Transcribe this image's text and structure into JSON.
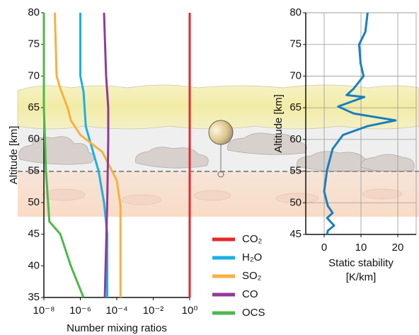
{
  "chart_data": [
    {
      "type": "line",
      "xscale": "log",
      "ylabel": "Altitude [km]",
      "xlabel": "Number mixing ratios",
      "xlim": [
        1e-08,
        1
      ],
      "ylim": [
        35,
        80
      ],
      "xticks": [
        {
          "value": 1e-08,
          "label": "10⁻⁸"
        },
        {
          "value": 1e-06,
          "label": "10⁻⁶"
        },
        {
          "value": 0.0001,
          "label": "10⁻⁴"
        },
        {
          "value": 0.01,
          "label": "10⁻²"
        },
        {
          "value": 1,
          "label": "10⁰"
        }
      ],
      "yticks": [
        35,
        40,
        45,
        50,
        55,
        60,
        65,
        70,
        75,
        80
      ],
      "legend": "right",
      "series": [
        {
          "name": "CO₂",
          "color": "#e8262b",
          "x": [
            1,
            1
          ],
          "y": [
            35,
            80
          ]
        },
        {
          "name": "H₂O",
          "color": "#1cb0e3",
          "x": [
            3e-05,
            3e-05,
            2e-05,
            1e-05,
            2e-06,
            1.5e-06,
            1e-06,
            1e-06
          ],
          "y": [
            35,
            45,
            50,
            55,
            62,
            67.5,
            70,
            80
          ]
        },
        {
          "name": "SO₂",
          "color": "#f9b040",
          "x": [
            0.00016,
            0.00016,
            0.0001,
            1.6e-05,
            1e-06,
            3e-07,
            2e-07,
            8e-08,
            5e-08,
            4e-08
          ],
          "y": [
            35,
            49.5,
            53.5,
            58,
            60.7,
            63,
            65,
            68,
            70,
            80
          ]
        },
        {
          "name": "CO",
          "color": "#8e3c96",
          "x": [
            2.2e-05,
            3e-05,
            3.4e-05,
            3.4e-05,
            2.6e-05,
            2e-05
          ],
          "y": [
            35,
            50,
            60,
            65,
            70,
            80
          ]
        },
        {
          "name": "OCS",
          "color": "#4cb848",
          "x": [
            1.5e-06,
            3e-07,
            8e-08,
            2e-08,
            1.3e-08,
            1e-08,
            1e-08
          ],
          "y": [
            35,
            40,
            45,
            47,
            55,
            65,
            80
          ]
        }
      ]
    },
    {
      "type": "line",
      "ylabel": "Altitude [km]",
      "xlabel": [
        "Static stability",
        "[K/km]"
      ],
      "xlim": [
        -5,
        25
      ],
      "ylim": [
        45,
        80
      ],
      "xticks": [
        0,
        10,
        20
      ],
      "yticks": [
        45,
        50,
        55,
        60,
        65,
        70,
        75,
        80
      ],
      "grid": true,
      "series": [
        {
          "color": "#1a7fc0",
          "x": [
            0.8,
            1,
            2.7,
            0.8,
            2.3,
            1,
            0,
            0.8,
            2.3,
            5.1,
            11.8,
            19.4,
            8,
            3.8,
            10.9,
            6.1,
            8,
            10.7,
            9.9,
            9.5,
            11.2,
            11.8
          ],
          "y": [
            45,
            45.6,
            46.4,
            47.6,
            48.4,
            49.5,
            51.8,
            55.2,
            58.5,
            60.7,
            62.1,
            63,
            64.1,
            65.2,
            66.7,
            67,
            68,
            70,
            72,
            75,
            77,
            80
          ]
        }
      ]
    }
  ]
}
